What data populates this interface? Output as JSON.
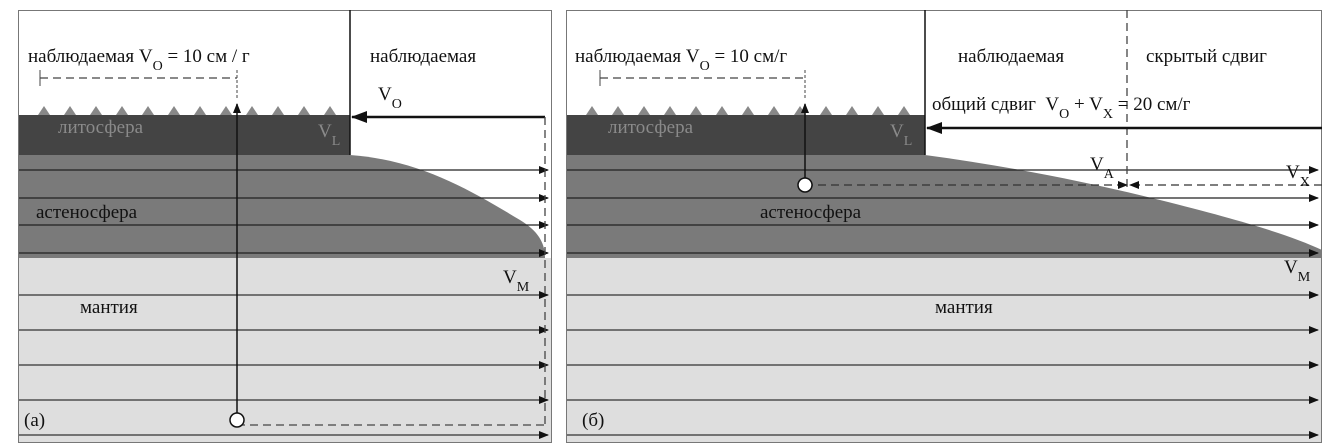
{
  "panels": [
    {
      "label": "(а)",
      "top_left": {
        "a": "наблюдаемая V",
        "sub": "O",
        "b": " = 10 см / г"
      },
      "top_right": "наблюдаемая",
      "vo": {
        "a": "V",
        "sub": "O"
      },
      "lithosphere": "литосфера",
      "vl": {
        "a": "V",
        "sub": "L"
      },
      "asthenosphere": "астеносфера",
      "vm": {
        "a": "V",
        "sub": "M"
      },
      "mantle": "мантия"
    },
    {
      "label": "(б)",
      "top_left": {
        "a": "наблюдаемая V",
        "sub": "O",
        "b": " = 10 см/г"
      },
      "top_right": "наблюдаемая",
      "hidden": "скрытый сдвиг",
      "total": {
        "a": "общий сдвиг  V",
        "sub1": "O",
        "b": " + V",
        "sub2": "X",
        "c": " = 20 см/г"
      },
      "lithosphere": "литосфера",
      "vl": {
        "a": "V",
        "sub": "L"
      },
      "va": {
        "a": "V",
        "sub": "A"
      },
      "vx": {
        "a": "V",
        "sub": "X"
      },
      "asthenosphere": "астеносфера",
      "vm": {
        "a": "V",
        "sub": "M"
      },
      "mantle": "мантия"
    }
  ]
}
